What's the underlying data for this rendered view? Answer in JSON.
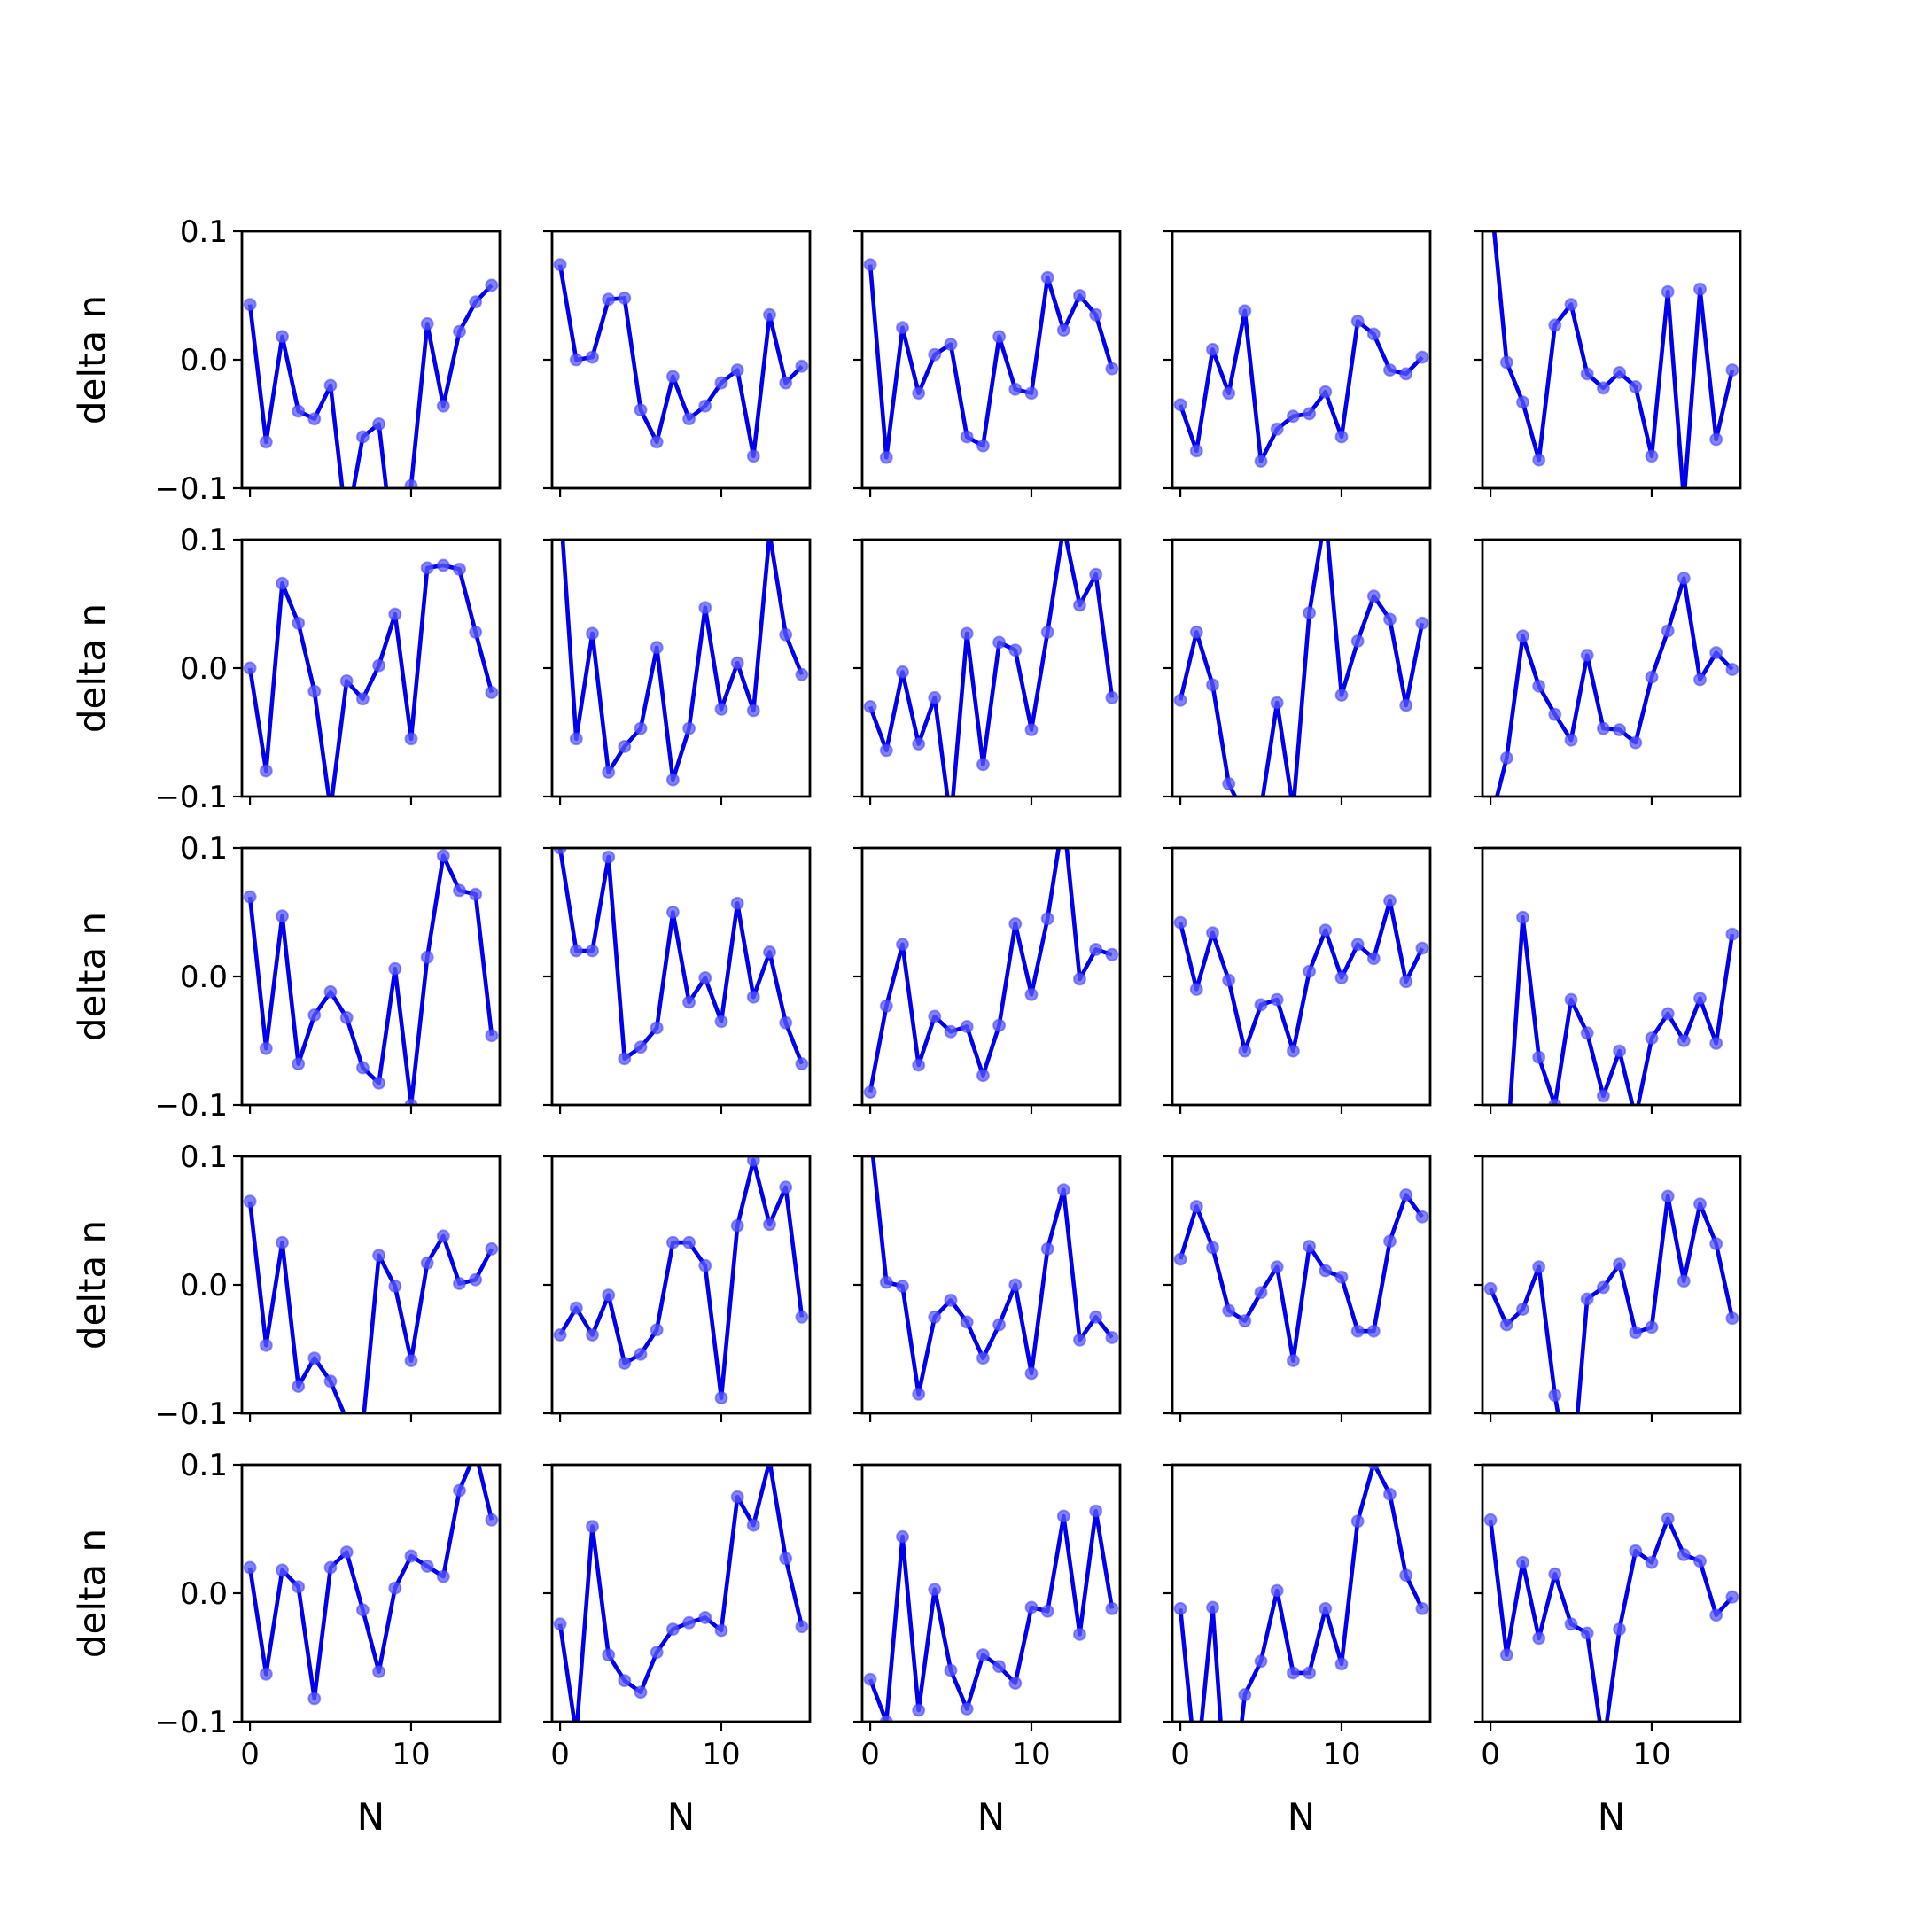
{
  "figure": {
    "background": "#ffffff",
    "line_color": "#0000ee",
    "marker_color": "#5a5aff"
  },
  "chart_data": {
    "type": "line",
    "layout": "5x5 subplot grid",
    "shared_x": true,
    "shared_y": true,
    "xlabel": "N",
    "ylabel": "delta n",
    "x": [
      0,
      1,
      2,
      3,
      4,
      5,
      6,
      7,
      8,
      9,
      10,
      11,
      12,
      13,
      14,
      15
    ],
    "xlim": [
      -0.5,
      15.5
    ],
    "ylim": [
      -0.1,
      0.1
    ],
    "xticks": [
      0,
      10
    ],
    "xtick_labels": [
      "0",
      "10"
    ],
    "yticks": [
      -0.1,
      0.0,
      0.1
    ],
    "ytick_labels": [
      "−0.1",
      "0.0",
      "0.1"
    ],
    "panels": [
      {
        "row": 0,
        "col": 0,
        "values": [
          0.043,
          -0.064,
          0.018,
          -0.04,
          -0.046,
          -0.02,
          -0.13,
          -0.06,
          -0.05,
          -0.16,
          -0.098,
          0.028,
          -0.036,
          0.022,
          0.045,
          0.058
        ]
      },
      {
        "row": 0,
        "col": 1,
        "values": [
          0.074,
          0.0,
          0.002,
          0.047,
          0.048,
          -0.039,
          -0.064,
          -0.013,
          -0.046,
          -0.036,
          -0.018,
          -0.008,
          -0.075,
          0.035,
          -0.018,
          -0.005
        ]
      },
      {
        "row": 0,
        "col": 2,
        "values": [
          0.074,
          -0.076,
          0.025,
          -0.026,
          0.004,
          0.012,
          -0.06,
          -0.067,
          0.018,
          -0.023,
          -0.026,
          0.064,
          0.023,
          0.05,
          0.035,
          -0.007
        ]
      },
      {
        "row": 0,
        "col": 3,
        "values": [
          -0.035,
          -0.071,
          0.008,
          -0.026,
          0.038,
          -0.079,
          -0.054,
          -0.044,
          -0.042,
          -0.025,
          -0.06,
          0.03,
          0.02,
          -0.008,
          -0.011,
          0.002
        ]
      },
      {
        "row": 0,
        "col": 4,
        "values": [
          0.13,
          -0.002,
          -0.033,
          -0.078,
          0.027,
          0.043,
          -0.011,
          -0.022,
          -0.01,
          -0.021,
          -0.075,
          0.053,
          -0.11,
          0.055,
          -0.062,
          -0.008
        ]
      },
      {
        "row": 1,
        "col": 0,
        "values": [
          0.0,
          -0.08,
          0.066,
          0.035,
          -0.018,
          -0.11,
          -0.01,
          -0.024,
          0.002,
          0.042,
          -0.055,
          0.078,
          0.08,
          0.077,
          0.028,
          -0.019
        ]
      },
      {
        "row": 1,
        "col": 1,
        "values": [
          0.13,
          -0.055,
          0.027,
          -0.081,
          -0.061,
          -0.047,
          0.016,
          -0.087,
          -0.047,
          0.047,
          -0.032,
          0.004,
          -0.033,
          0.105,
          0.026,
          -0.005
        ]
      },
      {
        "row": 1,
        "col": 2,
        "values": [
          -0.03,
          -0.064,
          -0.003,
          -0.059,
          -0.023,
          -0.12,
          0.027,
          -0.075,
          0.02,
          0.014,
          -0.048,
          0.028,
          0.11,
          0.049,
          0.073,
          -0.023
        ]
      },
      {
        "row": 1,
        "col": 3,
        "values": [
          -0.025,
          0.028,
          -0.013,
          -0.09,
          -0.115,
          -0.11,
          -0.027,
          -0.11,
          0.043,
          0.12,
          -0.021,
          0.021,
          0.056,
          0.038,
          -0.029,
          0.035
        ]
      },
      {
        "row": 1,
        "col": 4,
        "values": [
          -0.12,
          -0.07,
          0.025,
          -0.014,
          -0.036,
          -0.056,
          0.01,
          -0.047,
          -0.048,
          -0.058,
          -0.007,
          0.029,
          0.07,
          -0.009,
          0.012,
          -0.001
        ]
      },
      {
        "row": 2,
        "col": 0,
        "values": [
          0.062,
          -0.056,
          0.047,
          -0.068,
          -0.03,
          -0.012,
          -0.032,
          -0.071,
          -0.083,
          0.006,
          -0.1,
          0.015,
          0.094,
          0.067,
          0.064,
          -0.046
        ]
      },
      {
        "row": 2,
        "col": 1,
        "values": [
          0.1,
          0.02,
          0.02,
          0.093,
          -0.064,
          -0.055,
          -0.04,
          0.05,
          -0.02,
          -0.001,
          -0.035,
          0.057,
          -0.016,
          0.019,
          -0.036,
          -0.068
        ]
      },
      {
        "row": 2,
        "col": 2,
        "values": [
          -0.09,
          -0.023,
          0.025,
          -0.069,
          -0.031,
          -0.043,
          -0.039,
          -0.077,
          -0.038,
          0.041,
          -0.014,
          0.045,
          0.125,
          -0.002,
          0.021,
          0.017
        ]
      },
      {
        "row": 2,
        "col": 3,
        "values": [
          0.042,
          -0.01,
          0.034,
          -0.003,
          -0.058,
          -0.022,
          -0.018,
          -0.058,
          0.004,
          0.036,
          -0.001,
          0.025,
          0.014,
          0.059,
          -0.004,
          0.022
        ]
      },
      {
        "row": 2,
        "col": 4,
        "values": [
          -0.18,
          -0.14,
          0.046,
          -0.063,
          -0.1,
          -0.018,
          -0.044,
          -0.093,
          -0.058,
          -0.11,
          -0.048,
          -0.029,
          -0.05,
          -0.017,
          -0.052,
          0.033
        ]
      },
      {
        "row": 3,
        "col": 0,
        "values": [
          0.065,
          -0.047,
          0.033,
          -0.079,
          -0.057,
          -0.075,
          -0.105,
          -0.11,
          0.023,
          -0.001,
          -0.059,
          0.017,
          0.038,
          0.001,
          0.004,
          0.028
        ]
      },
      {
        "row": 3,
        "col": 1,
        "values": [
          -0.039,
          -0.018,
          -0.039,
          -0.008,
          -0.061,
          -0.054,
          -0.035,
          0.033,
          0.033,
          0.015,
          -0.088,
          0.046,
          0.097,
          0.047,
          0.076,
          -0.025
        ]
      },
      {
        "row": 3,
        "col": 2,
        "values": [
          0.12,
          0.002,
          -0.001,
          -0.085,
          -0.025,
          -0.012,
          -0.029,
          -0.057,
          -0.031,
          0.0,
          -0.069,
          0.028,
          0.074,
          -0.043,
          -0.025,
          -0.041
        ]
      },
      {
        "row": 3,
        "col": 3,
        "values": [
          0.02,
          0.061,
          0.029,
          -0.02,
          -0.028,
          -0.006,
          0.014,
          -0.059,
          0.03,
          0.011,
          0.006,
          -0.036,
          -0.036,
          0.034,
          0.07,
          0.053
        ]
      },
      {
        "row": 3,
        "col": 4,
        "values": [
          -0.003,
          -0.031,
          -0.019,
          0.014,
          -0.086,
          -0.16,
          -0.011,
          -0.002,
          0.016,
          -0.037,
          -0.033,
          0.069,
          0.003,
          0.063,
          0.032,
          -0.026
        ]
      },
      {
        "row": 4,
        "col": 0,
        "values": [
          0.02,
          -0.063,
          0.018,
          0.005,
          -0.082,
          0.02,
          0.032,
          -0.013,
          -0.061,
          0.004,
          0.029,
          0.021,
          0.013,
          0.08,
          0.11,
          0.057
        ]
      },
      {
        "row": 4,
        "col": 1,
        "values": [
          -0.024,
          -0.11,
          0.052,
          -0.048,
          -0.068,
          -0.077,
          -0.046,
          -0.028,
          -0.023,
          -0.019,
          -0.029,
          0.075,
          0.053,
          0.103,
          0.027,
          -0.026
        ]
      },
      {
        "row": 4,
        "col": 2,
        "values": [
          -0.067,
          -0.1,
          0.044,
          -0.091,
          0.003,
          -0.06,
          -0.09,
          -0.048,
          -0.057,
          -0.07,
          -0.011,
          -0.014,
          0.06,
          -0.032,
          0.064,
          -0.012
        ]
      },
      {
        "row": 4,
        "col": 3,
        "values": [
          -0.012,
          -0.14,
          -0.011,
          -0.19,
          -0.079,
          -0.053,
          0.002,
          -0.062,
          -0.062,
          -0.012,
          -0.055,
          0.056,
          0.101,
          0.077,
          0.014,
          -0.012
        ]
      },
      {
        "row": 4,
        "col": 4,
        "values": [
          0.057,
          -0.048,
          0.024,
          -0.035,
          0.015,
          -0.024,
          -0.031,
          -0.12,
          -0.028,
          0.033,
          0.024,
          0.058,
          0.03,
          0.025,
          -0.017,
          -0.003
        ]
      }
    ]
  }
}
